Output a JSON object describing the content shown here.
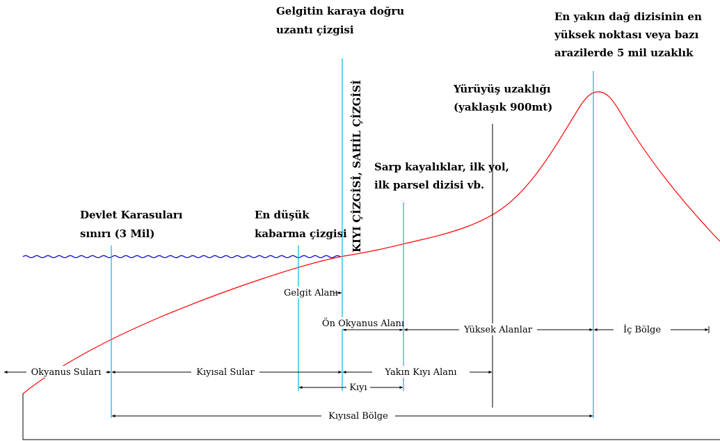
{
  "colors": {
    "terrain_profile": "#ff0000",
    "sea_level": "#0000cc",
    "marker_lines": "#00b8e6",
    "dimension_lines": "#000000"
  },
  "headings": {
    "tide_landward": [
      "Gelgitin karaya doğru",
      "uzantı çizgisi"
    ],
    "peak": [
      "En yakın dağ dizisinin en",
      "yüksek noktası veya bazı",
      "arazilerde 5 mil uzaklık"
    ],
    "walking": [
      "Yürüyüş uzaklığı",
      "(yaklaşık 900mt)"
    ],
    "cliffs": [
      "Sarp kayalıklar, ilk yol,",
      "ilk parsel dizisi vb."
    ],
    "territorial": [
      "Devlet Karasuları",
      "sınırı (3 Mil)"
    ],
    "low_tide": [
      "En düşük",
      "kabarma çizgisi"
    ],
    "shoreline_vertical": "KIYI ÇİZGİSİ, SAHİL ÇİZGİSİ"
  },
  "zones": {
    "tidal_area": "Gelgit Alanı",
    "foreshore": "Ön Okyanus Alanı",
    "uplands": "Yüksek Alanlar",
    "inland": "İç Bölge",
    "ocean_waters": "Okyanus Suları",
    "coastal_waters": "Kıyısal Sular",
    "near_shore": "Yakın Kıyı Alanı",
    "shore": "Kıyı",
    "coastal_zone": "Kıyısal Bölge"
  }
}
